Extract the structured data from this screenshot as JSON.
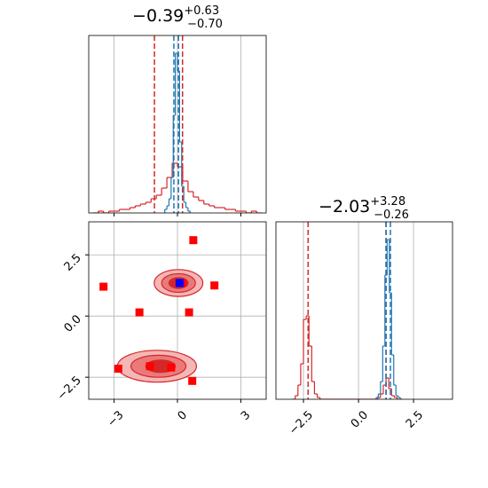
{
  "chart_data": [
    {
      "type": "histogram",
      "title": {
        "main": "−0.39",
        "upper": "+0.63",
        "lower": "−0.70"
      },
      "xlim": [
        -4.2,
        4.2
      ],
      "ylim": [
        0,
        100
      ],
      "grid": true,
      "series": [
        {
          "color": "#d62728",
          "bins": [
            -4,
            -3.75,
            -3.5,
            -3.25,
            -3,
            -2.75,
            -2.5,
            -2.25,
            -2,
            -1.75,
            -1.5,
            -1.25,
            -1,
            -0.75,
            -0.5,
            -0.25,
            0,
            0.25,
            0.5,
            0.75,
            1,
            1.25,
            1.5,
            1.75,
            2,
            2.25,
            2.5,
            2.75,
            3,
            3.25,
            3.5,
            3.75,
            4
          ],
          "values": [
            0,
            1,
            0,
            1,
            1,
            2,
            2,
            3,
            4,
            5,
            6,
            8,
            10,
            14,
            20,
            28,
            26,
            18,
            12,
            9,
            7,
            5,
            4,
            3,
            3,
            2,
            2,
            1,
            1,
            0,
            1,
            0
          ]
        },
        {
          "color": "#1f77b4",
          "bins": [
            -0.6,
            -0.5,
            -0.4,
            -0.3,
            -0.2,
            -0.1,
            0,
            0.1,
            0.2,
            0.3,
            0.4,
            0.5,
            0.6
          ],
          "values": [
            2,
            4,
            8,
            20,
            55,
            90,
            80,
            40,
            15,
            6,
            3,
            1
          ]
        }
      ],
      "quantiles": [
        {
          "color": "#d62728",
          "values": [
            -1.09,
            0.24
          ]
        },
        {
          "color": "#1f77b4",
          "values": [
            -0.17,
            0.05
          ]
        }
      ]
    },
    {
      "type": "scatter",
      "xlim": [
        -4.2,
        4.2
      ],
      "ylim": [
        -3.4,
        3.85
      ],
      "grid": true,
      "xticks": [
        {
          "value": -3,
          "label": "−3"
        },
        0,
        3
      ],
      "yticks": [
        {
          "value": -2.5,
          "label": "−2.5"
        },
        {
          "value": 0,
          "label": "0.0"
        },
        2.5
      ],
      "contours": [
        {
          "color": "#f4b6b6",
          "x": 0.05,
          "y": 1.35,
          "rx": 1.15,
          "ry": 0.55
        },
        {
          "color": "#ea7a7a",
          "x": 0.05,
          "y": 1.35,
          "rx": 0.8,
          "ry": 0.38
        },
        {
          "color": "#d62728",
          "x": 0.05,
          "y": 1.35,
          "rx": 0.45,
          "ry": 0.22
        },
        {
          "color": "#f4b6b6",
          "x": -0.97,
          "y": -2.05,
          "rx": 1.87,
          "ry": 0.65
        },
        {
          "color": "#ea7a7a",
          "x": -0.9,
          "y": -2.05,
          "rx": 1.3,
          "ry": 0.45
        },
        {
          "color": "#d62728",
          "x": -0.8,
          "y": -2.05,
          "rx": 0.7,
          "ry": 0.25
        }
      ],
      "series": [
        {
          "color": "#ff0000",
          "x": [
            0.75,
            -3.5,
            -1.8,
            0.55,
            1.75,
            -2.8,
            -1.3,
            -0.3,
            0.7,
            0.2
          ],
          "y": [
            3.1,
            1.2,
            0.15,
            0.15,
            1.25,
            -2.15,
            -2.05,
            -2.1,
            -2.65,
            1.35
          ]
        },
        {
          "color": "#0000ff",
          "x": [
            0.1
          ],
          "y": [
            1.35
          ]
        }
      ]
    },
    {
      "type": "histogram",
      "title": {
        "main": "−2.03",
        "upper": "+3.28",
        "lower": "−0.26"
      },
      "xlim": [
        -3.75,
        4.27
      ],
      "ylim": [
        0,
        100
      ],
      "grid": true,
      "xticks": [
        {
          "value": -2.5,
          "label": "−2.5"
        },
        {
          "value": 0,
          "label": "0.0"
        },
        2.5
      ],
      "series": [
        {
          "color": "#d62728",
          "bins": [
            -3,
            -2.875,
            -2.75,
            -2.625,
            -2.5,
            -2.375,
            -2.25,
            -2.125,
            -2,
            -1.875,
            -1.75,
            -1.625,
            -1.5,
            -1.375,
            -1.25,
            -1.125,
            -1,
            -0.875,
            -0.75,
            -0.625,
            -0.5,
            -0.375,
            -0.25,
            -0.125,
            0,
            0.125,
            0.25,
            0.375,
            0.5,
            0.625,
            0.75,
            0.875,
            1,
            1.125,
            1.25,
            1.375,
            1.5,
            1.625,
            1.75,
            1.875,
            2
          ],
          "values": [
            0,
            2,
            8,
            20,
            45,
            47,
            30,
            10,
            3,
            1,
            0,
            0,
            0,
            0,
            0,
            0,
            0,
            0,
            0,
            0,
            0,
            0,
            0,
            0,
            0,
            0,
            0,
            0,
            0,
            0,
            0,
            1,
            3,
            8,
            12,
            6,
            2,
            1,
            0,
            0
          ]
        },
        {
          "color": "#1f77b4",
          "bins": [
            0.8,
            0.9,
            1,
            1.1,
            1.2,
            1.3,
            1.4,
            1.5,
            1.6,
            1.7,
            1.8,
            1.9
          ],
          "values": [
            1,
            3,
            10,
            30,
            70,
            90,
            60,
            25,
            8,
            2,
            1
          ]
        }
      ],
      "quantiles": [
        {
          "color": "#d62728",
          "values": [
            -2.29,
            1.25
          ]
        },
        {
          "color": "#1f77b4",
          "values": [
            1.25,
            1.45
          ]
        }
      ]
    }
  ]
}
